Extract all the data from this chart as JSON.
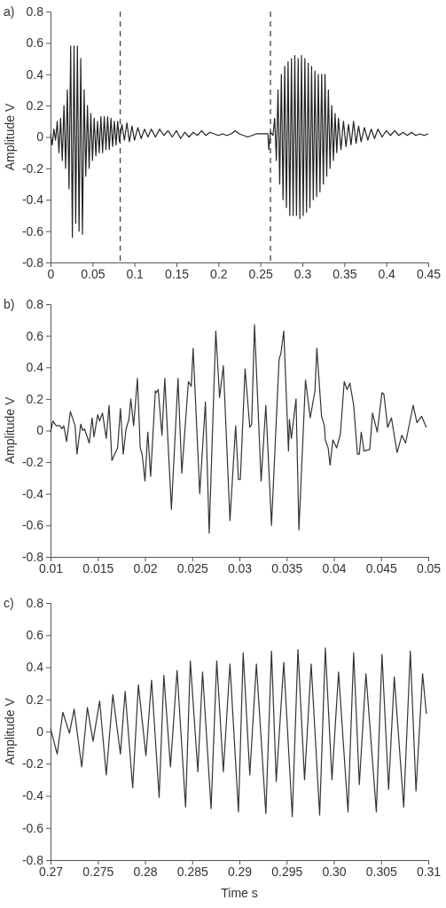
{
  "chart_data": [
    {
      "type": "line",
      "title": "a)",
      "ylabel": "Amplitude V",
      "xlim": [
        0,
        0.45
      ],
      "ylim": [
        -0.8,
        0.8
      ],
      "xticks": [
        0,
        0.05,
        0.1,
        0.15,
        0.2,
        0.25,
        0.3,
        0.35,
        0.4,
        0.45
      ],
      "yticks": [
        0.8,
        0.6,
        0.4,
        0.2,
        0,
        -0.2,
        -0.4,
        -0.6,
        -0.8
      ],
      "ref_lines": [
        {
          "axis": "x",
          "value": 0.083,
          "line_style": "dashed",
          "color": "#444444"
        },
        {
          "axis": "x",
          "value": 0.262,
          "line_style": "dashed",
          "color": "#444444"
        }
      ],
      "series": [
        {
          "color": "#222222",
          "x": [
            0,
            0.002,
            0.004,
            0.006,
            0.008,
            0.01,
            0.012,
            0.014,
            0.016,
            0.018,
            0.02,
            0.022,
            0.024,
            0.026,
            0.028,
            0.03,
            0.032,
            0.034,
            0.036,
            0.038,
            0.04,
            0.042,
            0.044,
            0.046,
            0.048,
            0.05,
            0.052,
            0.054,
            0.056,
            0.058,
            0.06,
            0.062,
            0.064,
            0.066,
            0.068,
            0.07,
            0.072,
            0.074,
            0.076,
            0.078,
            0.08,
            0.082,
            0.085,
            0.088,
            0.091,
            0.094,
            0.097,
            0.1,
            0.104,
            0.108,
            0.112,
            0.116,
            0.12,
            0.125,
            0.13,
            0.135,
            0.14,
            0.145,
            0.15,
            0.155,
            0.16,
            0.165,
            0.17,
            0.175,
            0.18,
            0.185,
            0.19,
            0.195,
            0.2,
            0.205,
            0.21,
            0.215,
            0.22,
            0.225,
            0.23,
            0.235,
            0.24,
            0.245,
            0.25,
            0.255,
            0.259,
            0.26,
            0.262,
            0.265,
            0.267,
            0.269,
            0.271,
            0.273,
            0.275,
            0.277,
            0.279,
            0.281,
            0.283,
            0.285,
            0.287,
            0.289,
            0.291,
            0.293,
            0.295,
            0.297,
            0.299,
            0.301,
            0.303,
            0.305,
            0.307,
            0.309,
            0.311,
            0.313,
            0.315,
            0.317,
            0.319,
            0.321,
            0.323,
            0.325,
            0.327,
            0.329,
            0.331,
            0.333,
            0.335,
            0.337,
            0.339,
            0.341,
            0.343,
            0.346,
            0.349,
            0.352,
            0.355,
            0.358,
            0.361,
            0.364,
            0.367,
            0.37,
            0.374,
            0.378,
            0.382,
            0.386,
            0.39,
            0.395,
            0.4,
            0.405,
            0.41,
            0.415,
            0.42,
            0.425,
            0.43,
            0.435,
            0.44,
            0.445,
            0.45
          ],
          "values": [
            0.02,
            -0.05,
            0.05,
            -0.02,
            0.1,
            -0.1,
            0.12,
            -0.15,
            0.2,
            -0.2,
            0.3,
            -0.33,
            0.58,
            -0.64,
            0.58,
            -0.55,
            0.58,
            -0.6,
            0.5,
            -0.62,
            0.3,
            -0.25,
            0.2,
            -0.2,
            0.15,
            -0.15,
            0.12,
            -0.12,
            0.1,
            -0.1,
            0.13,
            -0.1,
            0.13,
            -0.08,
            0.13,
            -0.08,
            0.12,
            -0.06,
            0.1,
            -0.05,
            0.1,
            -0.03,
            0.08,
            -0.02,
            0.09,
            -0.03,
            0.07,
            -0.02,
            0.06,
            -0.01,
            0.05,
            0,
            0.05,
            0,
            0.05,
            0.01,
            0.04,
            0,
            0.04,
            -0.01,
            0.03,
            0,
            0.03,
            0.01,
            0.04,
            0.01,
            0.03,
            0.02,
            0.01,
            0.02,
            0.01,
            0.02,
            0.04,
            0.02,
            0.01,
            0,
            0.01,
            0.02,
            0.02,
            0.02,
            0.02,
            -0.08,
            0.03,
            0.01,
            0.12,
            -0.15,
            0.3,
            -0.3,
            0.4,
            -0.4,
            0.45,
            -0.45,
            0.48,
            -0.5,
            0.5,
            -0.5,
            0.52,
            -0.5,
            0.5,
            -0.52,
            0.52,
            -0.5,
            0.5,
            -0.48,
            0.47,
            -0.45,
            0.45,
            -0.4,
            0.42,
            -0.38,
            0.4,
            -0.35,
            0.4,
            -0.3,
            0.4,
            -0.25,
            0.3,
            -0.2,
            0.2,
            -0.15,
            0.15,
            -0.1,
            0.12,
            -0.08,
            0.1,
            -0.06,
            0.08,
            -0.05,
            0.1,
            -0.04,
            0.07,
            -0.03,
            0.06,
            -0.02,
            0.05,
            -0.01,
            0.05,
            0,
            0.04,
            0.01,
            0.04,
            0.01,
            0.03,
            0.01,
            0.03,
            0.01,
            0.02,
            0.01,
            0.02
          ]
        }
      ]
    },
    {
      "type": "line",
      "title": "b)",
      "ylabel": "Amplitude V",
      "xlim": [
        0.01,
        0.05
      ],
      "ylim": [
        -0.8,
        0.8
      ],
      "xticks": [
        {
          "value": 0.01,
          "label": "0.01"
        },
        0.015,
        {
          "value": 0.02,
          "label": "0.02"
        },
        0.025,
        {
          "value": 0.03,
          "label": "0.03"
        },
        0.035,
        {
          "value": 0.04,
          "label": "0.04"
        },
        0.045,
        {
          "value": 0.05,
          "label": "0.05"
        }
      ],
      "yticks": [
        0.8,
        0.6,
        0.4,
        0.2,
        0,
        -0.2,
        -0.4,
        -0.6,
        -0.8
      ],
      "series": [
        {
          "color": "#333333",
          "x": [
            0.01,
            0.01025,
            0.0106,
            0.011,
            0.0112,
            0.0114,
            0.0117,
            0.0121,
            0.0126,
            0.0128,
            0.0132,
            0.0134,
            0.0136,
            0.0141,
            0.0144,
            0.0146,
            0.015,
            0.0152,
            0.0155,
            0.0159,
            0.0162,
            0.0165,
            0.0171,
            0.0174,
            0.0177,
            0.018,
            0.0183,
            0.0185,
            0.0188,
            0.0192,
            0.0195,
            0.0197,
            0.02,
            0.0203,
            0.0206,
            0.0211,
            0.0212,
            0.0214,
            0.0218,
            0.0221,
            0.0228,
            0.0235,
            0.0239,
            0.0246,
            0.0249,
            0.0251,
            0.0258,
            0.0264,
            0.0268,
            0.0275,
            0.0279,
            0.0283,
            0.029,
            0.0296,
            0.0299,
            0.0301,
            0.0306,
            0.0311,
            0.0313,
            0.0316,
            0.0323,
            0.0328,
            0.0334,
            0.0342,
            0.0344,
            0.0347,
            0.0352,
            0.0353,
            0.0355,
            0.036,
            0.0363,
            0.037,
            0.0375,
            0.038,
            0.0382,
            0.0387,
            0.039,
            0.0391,
            0.0394,
            0.0396,
            0.0399,
            0.0403,
            0.0407,
            0.0411,
            0.0414,
            0.0417,
            0.0421,
            0.0425,
            0.0427,
            0.0429,
            0.0432,
            0.0438,
            0.0441,
            0.0446,
            0.0451,
            0.0453,
            0.0457,
            0.0461,
            0.0467,
            0.0472,
            0.0476,
            0.0484,
            0.0488,
            0.0493,
            0.0498
          ],
          "values": [
            -0.01,
            0.06,
            0.03,
            0.03,
            0.01,
            0.03,
            -0.07,
            0.12,
            0.03,
            -0.15,
            0.04,
            0,
            0.01,
            -0.08,
            0.08,
            -0.04,
            0.1,
            0.06,
            0.11,
            -0.05,
            0.16,
            -0.19,
            -0.11,
            0.14,
            -0.15,
            0.01,
            0.07,
            0.2,
            0.03,
            0.33,
            -0.11,
            -0.15,
            -0.32,
            -0.01,
            -0.29,
            0.25,
            0.24,
            0.26,
            -0.03,
            0.33,
            -0.5,
            0.33,
            -0.27,
            0.31,
            0.28,
            0.52,
            -0.4,
            0.18,
            -0.65,
            0.63,
            0.21,
            0.41,
            -0.57,
            0.03,
            -0.31,
            -0.31,
            0.39,
            0.02,
            0.04,
            0.67,
            -0.32,
            0.16,
            -0.6,
            0.45,
            0.49,
            0.63,
            -0.13,
            0.07,
            -0.05,
            0.2,
            -0.63,
            0.32,
            0.08,
            0.25,
            0.52,
            0.09,
            0.03,
            -0.06,
            -0.11,
            -0.22,
            -0.06,
            -0.11,
            -0.02,
            0.31,
            0.26,
            0.3,
            0.16,
            -0.15,
            -0.15,
            -0.01,
            -0.13,
            -0.12,
            0.11,
            -0.01,
            0.24,
            0.23,
            0.02,
            0.08,
            -0.14,
            -0.03,
            -0.08,
            0.16,
            0.05,
            0.09,
            0.02
          ]
        }
      ]
    },
    {
      "type": "line",
      "title": "c)",
      "ylabel": "Amplitude V",
      "xlabel": "Time s",
      "xlim": [
        0.27,
        0.31
      ],
      "ylim": [
        -0.8,
        0.8
      ],
      "xticks": [
        {
          "value": 0.27,
          "label": "0.27"
        },
        0.275,
        {
          "value": 0.28,
          "label": "0.28"
        },
        0.285,
        {
          "value": 0.29,
          "label": "0.29"
        },
        0.295,
        {
          "value": 0.3,
          "label": "0.30"
        },
        0.305,
        {
          "value": 0.31,
          "label": "0.31"
        }
      ],
      "yticks": [
        0.8,
        0.6,
        0.4,
        0.2,
        0,
        -0.2,
        -0.4,
        -0.6,
        -0.8
      ],
      "series": [
        {
          "color": "#333333",
          "x": [
            0.27,
            0.2707,
            0.2713,
            0.272,
            0.2725,
            0.2733,
            0.2739,
            0.2745,
            0.2752,
            0.2759,
            0.2766,
            0.2774,
            0.2779,
            0.2787,
            0.2793,
            0.2801,
            0.2807,
            0.2815,
            0.282,
            0.2827,
            0.2834,
            0.2843,
            0.2848,
            0.2856,
            0.2861,
            0.287,
            0.2876,
            0.2883,
            0.289,
            0.2899,
            0.2904,
            0.2911,
            0.2918,
            0.2928,
            0.2934,
            0.2939,
            0.2947,
            0.2956,
            0.2962,
            0.2969,
            0.2976,
            0.2985,
            0.2991,
            0.2998,
            0.3005,
            0.3015,
            0.3021,
            0.3027,
            0.3034,
            0.3045,
            0.3051,
            0.3058,
            0.3064,
            0.3074,
            0.3081,
            0.3087,
            0.3094,
            0.3098
          ],
          "values": [
            0.02,
            -0.14,
            0.12,
            -0.01,
            0.14,
            -0.22,
            0.15,
            -0.06,
            0.19,
            -0.27,
            0.23,
            -0.14,
            0.25,
            -0.35,
            0.29,
            -0.15,
            0.32,
            -0.41,
            0.35,
            -0.22,
            0.38,
            -0.47,
            0.44,
            -0.25,
            0.37,
            -0.48,
            0.44,
            -0.25,
            0.42,
            -0.5,
            0.49,
            -0.27,
            0.42,
            -0.51,
            0.5,
            -0.31,
            0.43,
            -0.53,
            0.51,
            -0.3,
            0.42,
            -0.52,
            0.52,
            -0.3,
            0.37,
            -0.5,
            0.49,
            -0.33,
            0.36,
            -0.5,
            0.48,
            -0.36,
            0.34,
            -0.47,
            0.5,
            -0.37,
            0.36,
            0.11
          ]
        }
      ]
    }
  ]
}
